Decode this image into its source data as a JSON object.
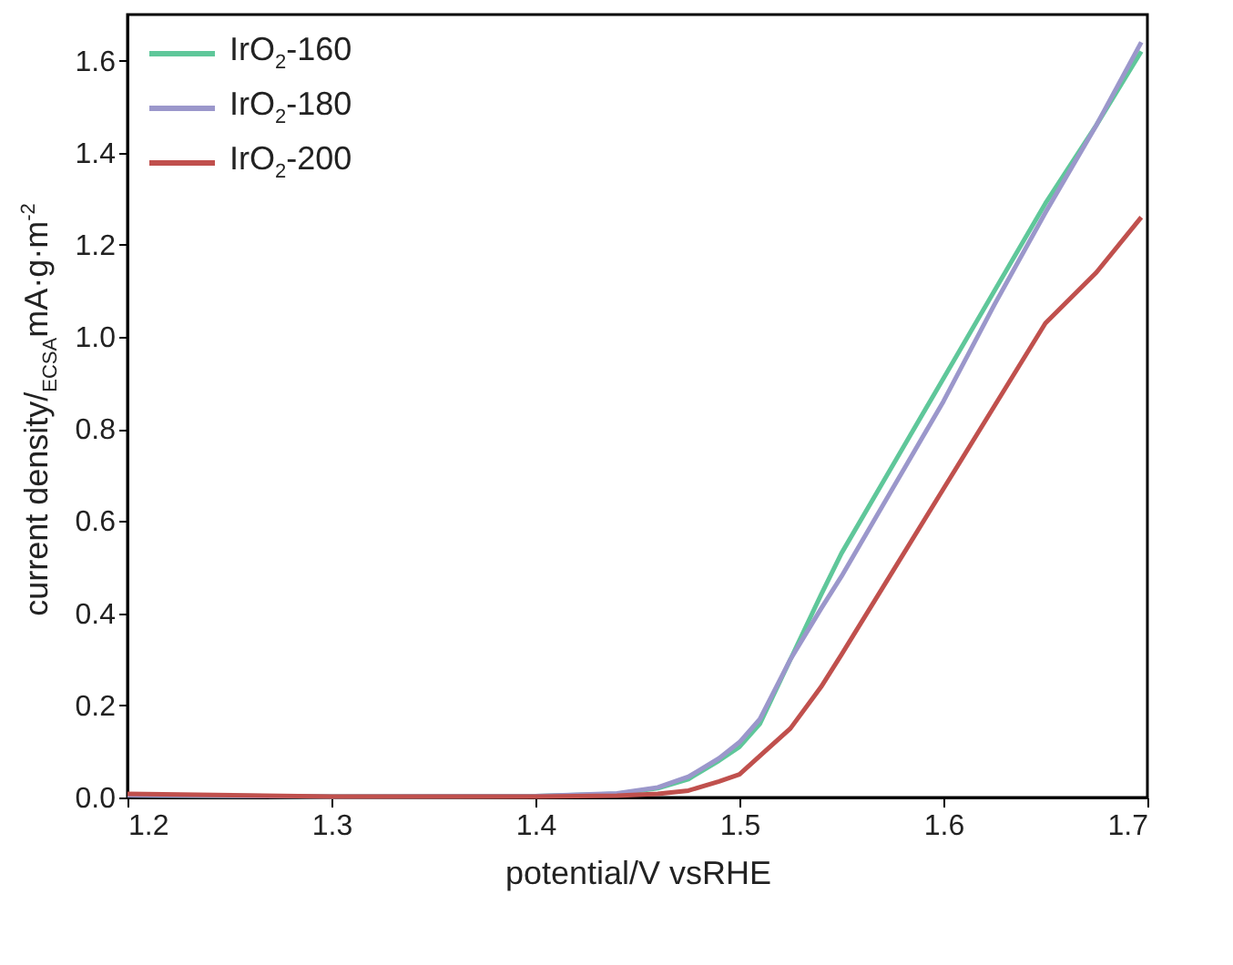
{
  "chart_data": {
    "type": "line",
    "xlabel": "potential/V vsRHE",
    "ylabel": "current density/$_{ECSA}$mA·g·m$^{-2}$",
    "xlim": [
      1.2,
      1.7
    ],
    "xticks": [
      1.2,
      1.3,
      1.4,
      1.5,
      1.6,
      1.7
    ],
    "ylim": [
      0,
      1.7
    ],
    "yticks": [
      {
        "value": 0,
        "label": "0.0"
      },
      0.2,
      0.4,
      0.6,
      0.8,
      {
        "value": 1,
        "label": "1.0"
      },
      1.2,
      1.4,
      1.6
    ],
    "legend": "top left",
    "grid": false,
    "line_style": "solid",
    "marker": "none",
    "x": [
      1.2,
      1.3,
      1.4,
      1.44,
      1.46,
      1.475,
      1.49,
      1.5,
      1.51,
      1.525,
      1.54,
      1.55,
      1.575,
      1.6,
      1.625,
      1.65,
      1.675,
      1.697
    ],
    "series": [
      {
        "name": "IrO$_{2}$-160",
        "color": "#5fc79a",
        "values": [
          0.005,
          0.002,
          0.003,
          0.008,
          0.02,
          0.04,
          0.08,
          0.11,
          0.16,
          0.3,
          0.44,
          0.53,
          0.72,
          0.91,
          1.1,
          1.29,
          1.46,
          1.62
        ]
      },
      {
        "name": "IrO$_{2}$-180",
        "color": "#9b97cb",
        "values": [
          0.005,
          0.002,
          0.003,
          0.009,
          0.022,
          0.045,
          0.085,
          0.12,
          0.17,
          0.3,
          0.41,
          0.48,
          0.67,
          0.86,
          1.07,
          1.27,
          1.46,
          1.64
        ]
      },
      {
        "name": "IrO$_{2}$-200",
        "color": "#c0504d",
        "values": [
          0.008,
          0.002,
          0.002,
          0.004,
          0.008,
          0.015,
          0.035,
          0.05,
          0.09,
          0.15,
          0.24,
          0.31,
          0.49,
          0.67,
          0.85,
          1.03,
          1.14,
          1.26
        ]
      }
    ]
  }
}
